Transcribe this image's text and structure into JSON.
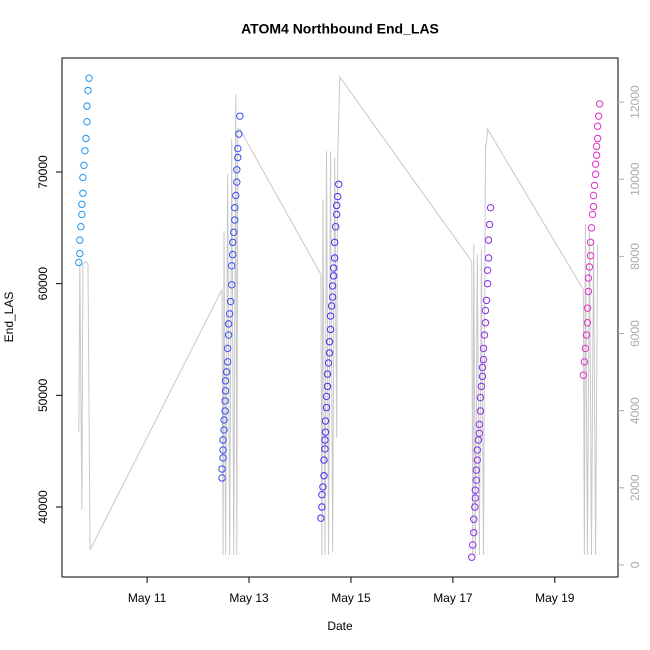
{
  "chart_data": {
    "type": "scatter",
    "title": "ATOM4 Northbound End_LAS",
    "xlabel": "Date",
    "ylabel": "End_LAS",
    "xlim": [
      9.33,
      20.24
    ],
    "ylim": [
      33730,
      80210
    ],
    "y2lim": [
      -312,
      13143
    ],
    "xticks": [
      {
        "value": 11,
        "label": "May 11"
      },
      {
        "value": 13,
        "label": "May 13"
      },
      {
        "value": 15,
        "label": "May 15"
      },
      {
        "value": 17,
        "label": "May 17"
      },
      {
        "value": 19,
        "label": "May 19"
      }
    ],
    "yticks": [
      40000,
      50000,
      60000,
      70000
    ],
    "y2ticks": [
      0,
      2000,
      4000,
      6000,
      8000,
      10000,
      12000
    ],
    "series": [
      {
        "type": "line",
        "axis": "y2",
        "color": "#c8c8c8",
        "x": [
          9.66,
          9.68,
          9.72,
          9.74,
          9.8,
          9.84,
          9.88,
          12.47,
          12.49,
          12.51,
          12.54,
          12.58,
          12.62,
          12.66,
          12.7,
          12.74,
          12.76,
          12.78,
          12.82,
          14.41,
          14.43,
          14.45,
          14.49,
          14.52,
          14.56,
          14.6,
          14.64,
          14.68,
          14.72,
          14.74,
          14.78,
          17.37,
          17.39,
          17.41,
          17.44,
          17.48,
          17.52,
          17.56,
          17.6,
          17.64,
          17.66,
          17.68,
          19.56,
          19.58,
          19.6,
          19.64,
          19.68,
          19.72,
          19.76,
          19.8,
          19.84
        ],
        "values": [
          3450,
          7870,
          1430,
          7790,
          7870,
          7790,
          390,
          7140,
          260,
          8650,
          260,
          10130,
          260,
          11040,
          260,
          12210,
          260,
          11300,
          11300,
          7530,
          260,
          9480,
          260,
          10730,
          260,
          10730,
          340,
          10570,
          3300,
          10520,
          12650,
          7870,
          260,
          8310,
          260,
          8050,
          260,
          8180,
          260,
          10910,
          10910,
          11300,
          7140,
          260,
          8830,
          260,
          8650,
          260,
          8440,
          260,
          8310
        ]
      },
      {
        "type": "scatter",
        "color": "#1f96f0",
        "x": [
          9.66,
          9.68,
          9.68,
          9.7,
          9.72,
          9.72,
          9.74,
          9.74,
          9.76,
          9.78,
          9.8,
          9.82,
          9.82,
          9.84,
          9.86
        ],
        "values": [
          61900,
          62700,
          63900,
          65100,
          66200,
          67100,
          68100,
          69500,
          70600,
          71900,
          73000,
          74500,
          75900,
          77300,
          78400
        ]
      },
      {
        "type": "scatter",
        "color": "#3a4ff2",
        "x": [
          12.47,
          12.47,
          12.49,
          12.49,
          12.49,
          12.51,
          12.51,
          12.53,
          12.53,
          12.54,
          12.54,
          12.56,
          12.58,
          12.58,
          12.6,
          12.6,
          12.62,
          12.64,
          12.66,
          12.66,
          12.68,
          12.68,
          12.7,
          12.72,
          12.72,
          12.74,
          12.76,
          12.76,
          12.78,
          12.78,
          12.8,
          12.82
        ],
        "values": [
          42600,
          43400,
          44400,
          45100,
          46000,
          46900,
          47800,
          48600,
          49500,
          50400,
          51300,
          52100,
          53000,
          54200,
          55400,
          56400,
          57300,
          58400,
          59900,
          61600,
          62600,
          63700,
          64600,
          65700,
          66800,
          67900,
          69100,
          70200,
          71300,
          72100,
          73400,
          75000
        ]
      },
      {
        "type": "scatter",
        "color": "#4a2ef0",
        "x": [
          14.41,
          14.43,
          14.43,
          14.45,
          14.47,
          14.47,
          14.49,
          14.49,
          14.5,
          14.5,
          14.52,
          14.52,
          14.54,
          14.54,
          14.56,
          14.58,
          14.58,
          14.6,
          14.6,
          14.62,
          14.64,
          14.64,
          14.66,
          14.66,
          14.68,
          14.68,
          14.7,
          14.72,
          14.72,
          14.74,
          14.76
        ],
        "values": [
          39000,
          40000,
          41100,
          41800,
          42800,
          44200,
          45200,
          46000,
          46700,
          47700,
          48900,
          49900,
          50800,
          51900,
          52900,
          53800,
          54800,
          55900,
          57100,
          58000,
          58800,
          59800,
          60700,
          61400,
          62300,
          63700,
          65100,
          66200,
          67000,
          67800,
          68900
        ]
      },
      {
        "type": "scatter",
        "color": "#8a2ee8",
        "x": [
          17.37,
          17.39,
          17.41,
          17.41,
          17.43,
          17.44,
          17.44,
          17.46,
          17.46,
          17.48,
          17.48,
          17.5,
          17.52,
          17.52,
          17.54,
          17.54,
          17.56,
          17.58,
          17.58,
          17.6,
          17.6,
          17.62,
          17.64,
          17.64,
          17.66,
          17.68,
          17.68,
          17.7,
          17.7,
          17.72,
          17.74
        ],
        "values": [
          35500,
          36600,
          37700,
          38900,
          40000,
          40800,
          41500,
          42400,
          43300,
          44200,
          45100,
          46000,
          46600,
          47400,
          48600,
          49800,
          50800,
          51700,
          52500,
          53200,
          54200,
          55400,
          56500,
          57600,
          58500,
          60000,
          61200,
          62300,
          63900,
          65300,
          66800
        ]
      },
      {
        "type": "scatter",
        "color": "#e030c8",
        "x": [
          19.56,
          19.58,
          19.6,
          19.62,
          19.64,
          19.64,
          19.66,
          19.66,
          19.68,
          19.7,
          19.7,
          19.72,
          19.74,
          19.76,
          19.76,
          19.78,
          19.8,
          19.8,
          19.82,
          19.82,
          19.84,
          19.84,
          19.86,
          19.88
        ],
        "values": [
          51800,
          53000,
          54200,
          55400,
          56500,
          57800,
          59300,
          60500,
          61500,
          62500,
          63700,
          65000,
          66200,
          66900,
          67900,
          68800,
          69800,
          70700,
          71500,
          72300,
          73000,
          74100,
          75000,
          76100
        ]
      }
    ]
  }
}
